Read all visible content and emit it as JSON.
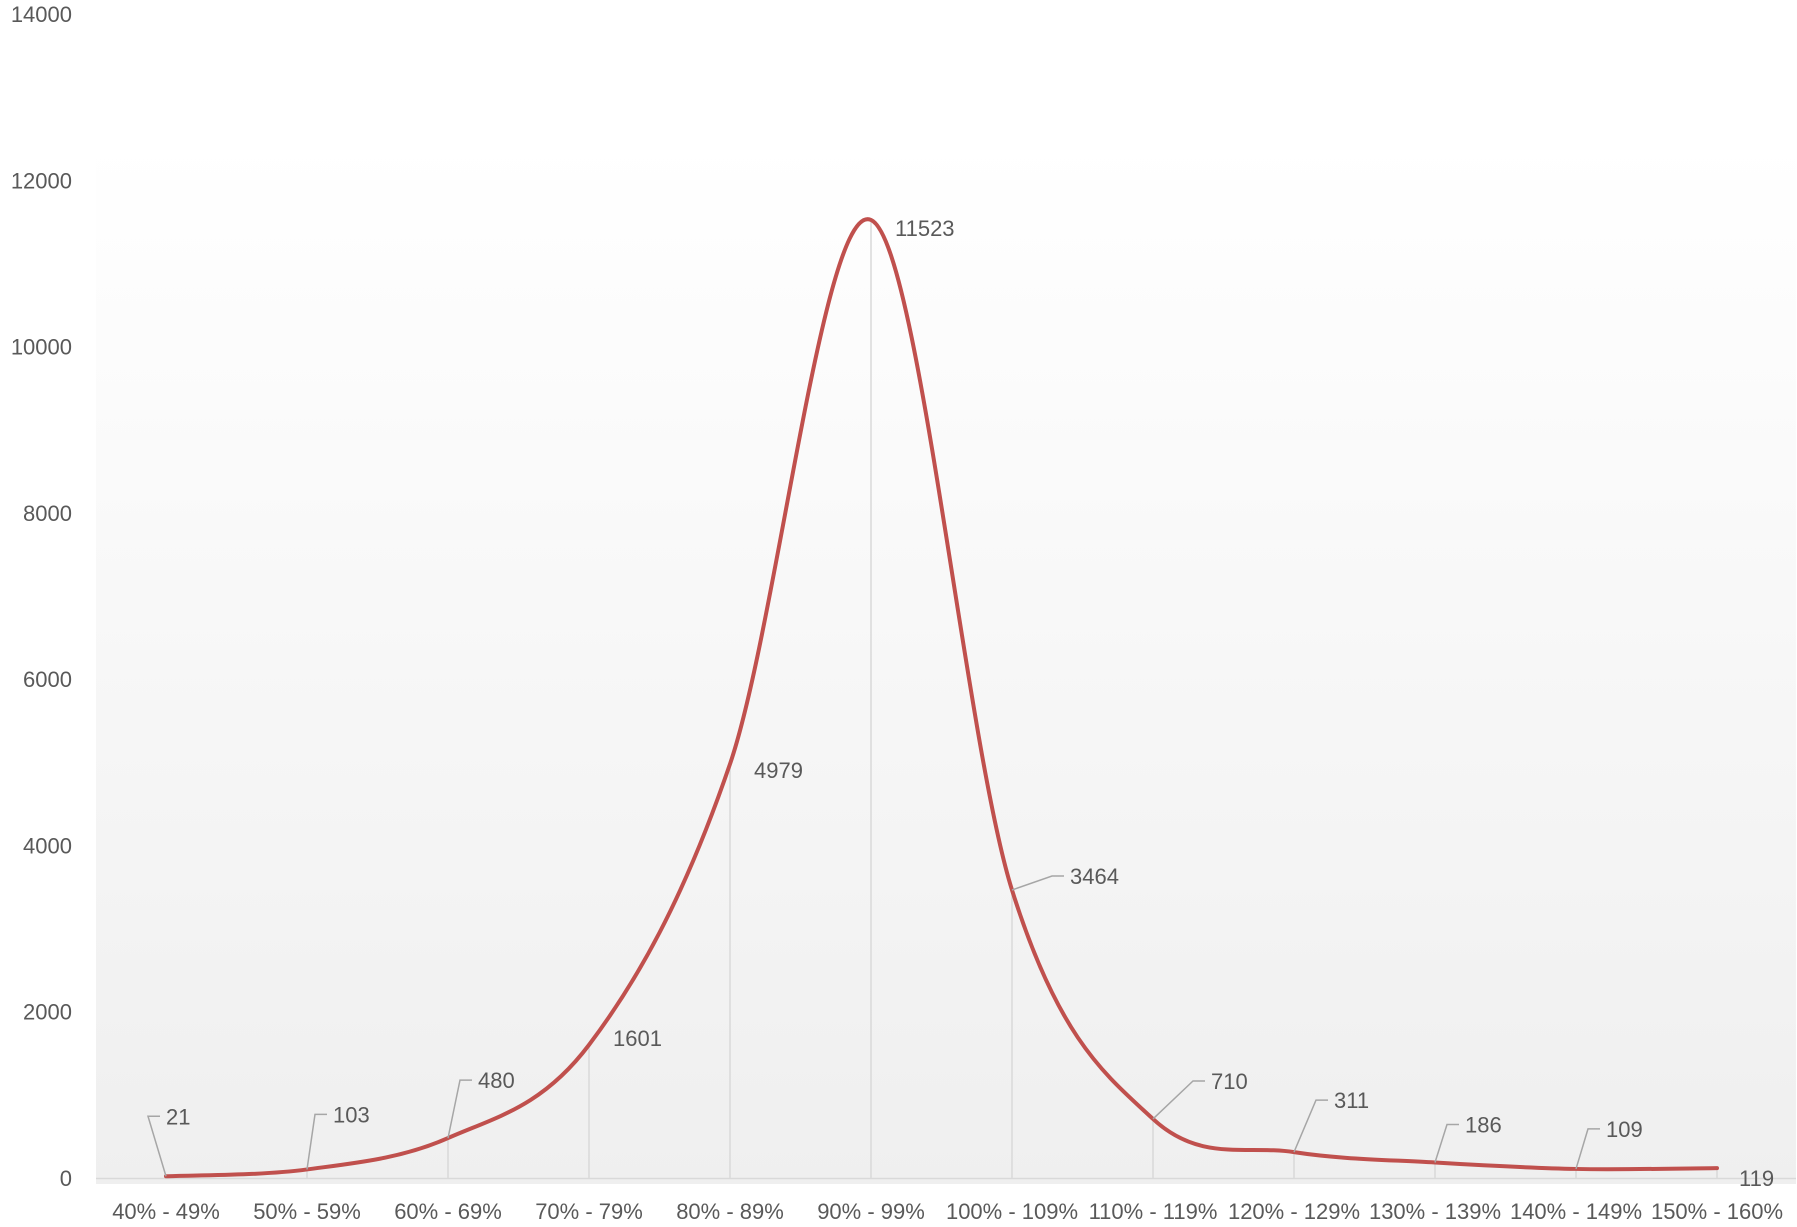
{
  "chart_data": {
    "type": "line",
    "smooth": true,
    "categories": [
      "40% - 49%",
      "50% - 59%",
      "60% - 69%",
      "70% - 79%",
      "80% - 89%",
      "90% - 99%",
      "100% - 109%",
      "110% - 119%",
      "120% - 129%",
      "130% - 139%",
      "140% - 149%",
      "150% - 160%"
    ],
    "series": [
      {
        "values": [
          21,
          103,
          480,
          1601,
          4979,
          11523,
          3464,
          710,
          311,
          186,
          109,
          119
        ],
        "color": "#C0504D"
      }
    ],
    "data_labels": [
      "21",
      "103",
      "480",
      "1601",
      "4979",
      "11523",
      "3464",
      "710",
      "311",
      "186",
      "109",
      "119"
    ],
    "yticks": [
      "0",
      "2000",
      "4000",
      "6000",
      "8000",
      "10000",
      "12000",
      "14000"
    ],
    "ylim": [
      0,
      14000
    ],
    "title": "",
    "xlabel": "",
    "ylabel": "",
    "drop_lines": true,
    "legend": "none",
    "colors": {
      "line": "#C0504D",
      "drop_line": "#D9D9D9",
      "leader_line": "#A6A6A6",
      "text": "#595959",
      "background_top": "#FFFFFF",
      "background_bottom": "#EFEFEF"
    }
  }
}
